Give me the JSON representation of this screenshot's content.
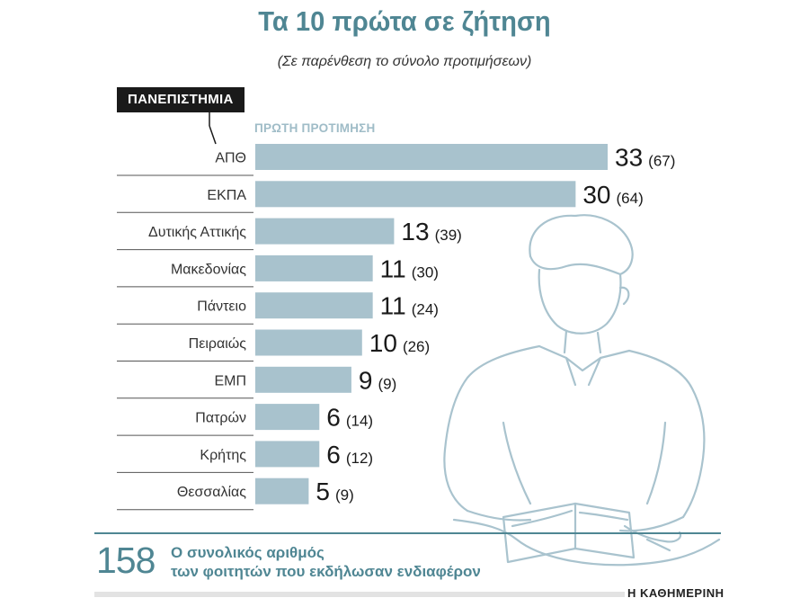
{
  "title": "Τα 10 πρώτα σε ζήτηση",
  "subtitle": "(Σε παρένθεση το σύνολο προτιμήσεων)",
  "category_tag": "ΠΑΝΕΠΙΣΤΗΜΙΑ",
  "legend_label": "ΠΡΩΤΗ ΠΡΟΤΙΜΗΣΗ",
  "colors": {
    "accent": "#4f8693",
    "bar": "#a8c2cd",
    "legend": "#9fbcc7"
  },
  "chart_data": {
    "type": "bar",
    "orientation": "horizontal",
    "categories": [
      "ΑΠΘ",
      "ΕΚΠΑ",
      "Δυτικής Αττικής",
      "Μακεδονίας",
      "Πάντειο",
      "Πειραιώς",
      "ΕΜΠ",
      "Πατρών",
      "Κρήτης",
      "Θεσσαλίας"
    ],
    "series": [
      {
        "name": "ΠΡΩΤΗ ΠΡΟΤΙΜΗΣΗ",
        "values": [
          33,
          30,
          13,
          11,
          11,
          10,
          9,
          6,
          6,
          5
        ]
      }
    ],
    "totals": [
      "(67)",
      "(64)",
      "(39)",
      "(30)",
      "(24)",
      "(26)",
      "(9)",
      "(14)",
      "(12)",
      "(9)"
    ],
    "xlim": [
      0,
      33
    ]
  },
  "footer": {
    "number": "158",
    "text_line1": "Ο συνολικός αριθμός",
    "text_line2": "των φοιτητών που εκδήλωσαν ενδιαφέρον"
  },
  "brand": "Η ΚΑΘΗΜΕΡΙΝΗ",
  "illustration_icon": "student-reading-book-icon"
}
